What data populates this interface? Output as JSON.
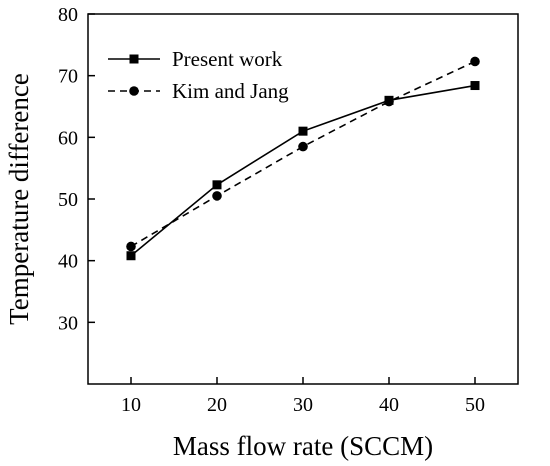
{
  "chart_data": {
    "type": "line",
    "title": "",
    "xlabel": "Mass flow rate (SCCM)",
    "ylabel": "Temperature difference",
    "xlim": [
      5,
      55
    ],
    "ylim": [
      20,
      80
    ],
    "xticks": [
      10,
      20,
      30,
      40,
      50
    ],
    "yticks": [
      30,
      40,
      50,
      60,
      70,
      80
    ],
    "grid": false,
    "legend_position": "top-left",
    "series": [
      {
        "name": "Present work",
        "marker": "square",
        "line_style": "solid",
        "color": "#000000",
        "x": [
          10,
          20,
          30,
          40,
          50
        ],
        "y": [
          40.8,
          52.3,
          61.0,
          66.0,
          68.4
        ]
      },
      {
        "name": "Kim and Jang",
        "marker": "circle",
        "line_style": "dashed",
        "color": "#000000",
        "x": [
          10,
          20,
          30,
          40,
          50
        ],
        "y": [
          42.3,
          50.5,
          58.5,
          65.8,
          72.3
        ]
      }
    ]
  }
}
